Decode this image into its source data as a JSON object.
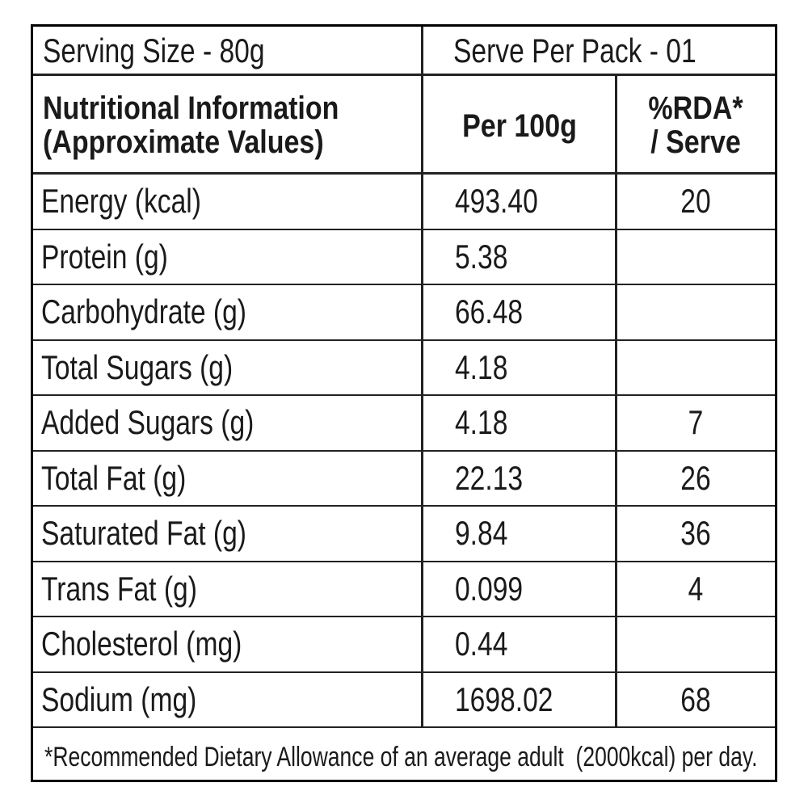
{
  "serving": {
    "size": "Serving Size - 80g",
    "per_pack": "Serve Per Pack - 01"
  },
  "table": {
    "header": [
      "Nutritional Information\n(Approximate Values)",
      "Per 100g",
      "%RDA*\n/ Serve"
    ],
    "rows": [
      {
        "nutrient": "Energy (kcal)",
        "per_100g": "493.40",
        "rda": "20"
      },
      {
        "nutrient": "Protein (g)",
        "per_100g": "5.38"
      },
      {
        "nutrient": "Carbohydrate (g)",
        "per_100g": "66.48"
      },
      {
        "nutrient": "Total Sugars (g)",
        "per_100g": "4.18"
      },
      {
        "nutrient": "Added Sugars (g)",
        "per_100g": "4.18",
        "rda": "7"
      },
      {
        "nutrient": "Total Fat (g)",
        "per_100g": "22.13",
        "rda": "26"
      },
      {
        "nutrient": "Saturated Fat (g)",
        "per_100g": "9.84",
        "rda": "36"
      },
      {
        "nutrient": "Trans Fat (g)",
        "per_100g": "0.099",
        "rda": "4"
      },
      {
        "nutrient": "Cholesterol (mg)",
        "per_100g": "0.44"
      },
      {
        "nutrient": "Sodium (mg)",
        "per_100g": "1698.02",
        "rda": "68"
      }
    ]
  },
  "footnote": "*Recommended Dietary Allowance of an average adult  (2000kcal) per day."
}
